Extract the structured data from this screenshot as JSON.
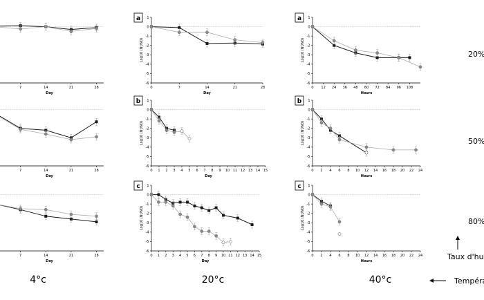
{
  "legend_labels": {
    "temperatures": [
      "4°c",
      "20°c",
      "40°c"
    ],
    "humidity": [
      "20%",
      "50%",
      "80%"
    ],
    "humidity_axis": "Taux d'hum",
    "temperature_axis": "Tempéra"
  },
  "chart_data": [
    {
      "id": "p4_20",
      "type": "line",
      "panel_label": "",
      "xlabel": "Day",
      "ylabel": "",
      "xlim": [
        0,
        30
      ],
      "ylim": [
        -6,
        1
      ],
      "xticks": [
        7,
        14,
        21,
        28
      ],
      "yticks": [],
      "series": [
        {
          "marker": "filled",
          "x": [
            0,
            7,
            14,
            21,
            28
          ],
          "y": [
            0.05,
            0.1,
            0.0,
            -0.3,
            -0.1
          ]
        },
        {
          "marker": "grey",
          "x": [
            0,
            7,
            14,
            21,
            28
          ],
          "y": [
            0.0,
            -0.25,
            0.0,
            -0.5,
            -0.2
          ]
        }
      ]
    },
    {
      "id": "p4_50",
      "type": "line",
      "panel_label": "",
      "xlabel": "Day",
      "ylabel": "",
      "xlim": [
        0,
        30
      ],
      "ylim": [
        -6,
        1
      ],
      "xticks": [
        7,
        14,
        21,
        28
      ],
      "yticks": [],
      "series": [
        {
          "marker": "filled",
          "x": [
            0,
            7,
            14,
            21,
            28
          ],
          "y": [
            -0.4,
            -2.0,
            -2.2,
            -3.0,
            -1.3
          ]
        },
        {
          "marker": "grey",
          "x": [
            0,
            7,
            14,
            21,
            28
          ],
          "y": [
            -0.5,
            -2.1,
            -2.6,
            -3.2,
            -2.9
          ]
        }
      ]
    },
    {
      "id": "p4_80",
      "type": "line",
      "panel_label": "",
      "xlabel": "Day",
      "ylabel": "",
      "xlim": [
        0,
        30
      ],
      "ylim": [
        -6,
        1
      ],
      "xticks": [
        7,
        14,
        21,
        28
      ],
      "yticks": [],
      "series": [
        {
          "marker": "filled",
          "x": [
            0,
            7,
            14,
            21,
            28
          ],
          "y": [
            -1.0,
            -1.6,
            -2.3,
            -2.6,
            -2.9
          ]
        },
        {
          "marker": "grey",
          "x": [
            0,
            7,
            14,
            21,
            28
          ],
          "y": [
            -1.0,
            -1.5,
            -1.6,
            -2.1,
            -2.3
          ]
        }
      ]
    },
    {
      "id": "p20_20",
      "type": "line",
      "panel_label": "a",
      "xlabel": "Day",
      "ylabel": "Log10 (Nt/N0)",
      "xlim": [
        0,
        28
      ],
      "ylim": [
        -6,
        1
      ],
      "xticks": [
        0,
        7,
        14,
        21,
        28
      ],
      "yticks": [
        1,
        0,
        -1,
        -2,
        -3,
        -4,
        -5,
        -6
      ],
      "series": [
        {
          "marker": "filled",
          "x": [
            0,
            7,
            14,
            21,
            28
          ],
          "y": [
            0.0,
            -0.1,
            -1.8,
            -1.75,
            -1.85
          ]
        },
        {
          "marker": "grey",
          "x": [
            0,
            7,
            14,
            21,
            28
          ],
          "y": [
            0.0,
            -0.6,
            -0.6,
            -1.4,
            -1.7
          ]
        }
      ]
    },
    {
      "id": "p20_50",
      "type": "line",
      "panel_label": "b",
      "xlabel": "Day",
      "ylabel": "Log10 (Nt/N0)",
      "xlim": [
        0,
        15
      ],
      "ylim": [
        -6,
        1
      ],
      "xticks": [
        0,
        1,
        2,
        3,
        4,
        5,
        6,
        7,
        8,
        9,
        10,
        11,
        12,
        13,
        14,
        15
      ],
      "yticks": [
        1,
        0,
        -1,
        -2,
        -3,
        -4,
        -5,
        -6
      ],
      "series": [
        {
          "marker": "filled",
          "x": [
            0,
            1,
            2,
            3
          ],
          "y": [
            0.0,
            -0.8,
            -2.0,
            -2.2
          ]
        },
        {
          "marker": "grey",
          "x": [
            0,
            1,
            2,
            3,
            4
          ],
          "y": [
            0.0,
            -1.2,
            -2.2,
            -2.4,
            -2.3
          ]
        },
        {
          "marker": "open",
          "x": [
            4,
            5
          ],
          "y": [
            -2.3,
            -3.1
          ]
        }
      ]
    },
    {
      "id": "p20_80",
      "type": "line",
      "panel_label": "c",
      "xlabel": "Day",
      "ylabel": "Log10 (Nt/N0)",
      "xlim": [
        0,
        15
      ],
      "ylim": [
        -6,
        1
      ],
      "xticks": [
        0,
        1,
        2,
        3,
        4,
        5,
        6,
        7,
        8,
        9,
        10,
        11,
        12,
        13,
        14,
        15
      ],
      "yticks": [
        1,
        0,
        -1,
        -2,
        -3,
        -4,
        -5,
        -6
      ],
      "series": [
        {
          "marker": "filled",
          "x": [
            0,
            1,
            2,
            3,
            4,
            5,
            6,
            7,
            8,
            9,
            10,
            12,
            14
          ],
          "y": [
            0.0,
            0.0,
            -0.5,
            -0.9,
            -0.8,
            -0.8,
            -1.2,
            -1.4,
            -1.7,
            -1.4,
            -2.2,
            -2.5,
            -3.2
          ]
        },
        {
          "marker": "grey",
          "x": [
            0,
            1,
            2,
            3,
            4,
            5,
            6,
            7,
            8,
            9,
            10
          ],
          "y": [
            0.0,
            -0.8,
            -0.8,
            -1.2,
            -2.1,
            -2.4,
            -3.4,
            -3.9,
            -3.9,
            -4.4,
            -5.1
          ]
        },
        {
          "marker": "open",
          "x": [
            10,
            11
          ],
          "y": [
            -5.1,
            -5.0
          ]
        }
      ]
    },
    {
      "id": "p40_20",
      "type": "line",
      "panel_label": "a",
      "xlabel": "Hours",
      "ylabel": "Log10 (Nt/N0)",
      "xlim": [
        0,
        120
      ],
      "ylim": [
        -6,
        1
      ],
      "xticks": [
        0,
        12,
        24,
        36,
        48,
        60,
        72,
        84,
        96,
        108
      ],
      "yticks": [
        1,
        0,
        -1,
        -2,
        -3,
        -4,
        -5,
        -6
      ],
      "series": [
        {
          "marker": "filled",
          "x": [
            0,
            24,
            48,
            72,
            96,
            108
          ],
          "y": [
            0.0,
            -2.0,
            -2.8,
            -3.3,
            -3.3,
            -3.3
          ]
        },
        {
          "marker": "grey",
          "x": [
            0,
            24,
            48,
            72,
            96,
            120
          ],
          "y": [
            0.0,
            -1.5,
            -2.5,
            -2.8,
            -3.3,
            -4.3
          ]
        }
      ]
    },
    {
      "id": "p40_50",
      "type": "line",
      "panel_label": "b",
      "xlabel": "Hours",
      "ylabel": "Log10 (Nt/N0)",
      "xlim": [
        0,
        24
      ],
      "ylim": [
        -6,
        1
      ],
      "xticks": [
        0,
        2,
        4,
        6,
        8,
        10,
        12,
        14,
        16,
        18,
        20,
        22,
        24
      ],
      "yticks": [
        1,
        0,
        -1,
        -2,
        -3,
        -4,
        -5,
        -6
      ],
      "series": [
        {
          "marker": "filled",
          "x": [
            0,
            2,
            4,
            6,
            12
          ],
          "y": [
            0.0,
            -1.0,
            -2.2,
            -2.8,
            -4.6
          ]
        },
        {
          "marker": "grey",
          "x": [
            0,
            2,
            4,
            6,
            12,
            18,
            23
          ],
          "y": [
            0.0,
            -1.4,
            -2.0,
            -3.2,
            -4.0,
            -4.3,
            -4.3
          ]
        },
        {
          "marker": "open",
          "x": [
            12
          ],
          "y": [
            -4.6
          ]
        }
      ]
    },
    {
      "id": "p40_80",
      "type": "line",
      "panel_label": "c",
      "xlabel": "Hours",
      "ylabel": "Log10 (Nt/N0)",
      "xlim": [
        0,
        24
      ],
      "ylim": [
        -6,
        1
      ],
      "xticks": [
        0,
        2,
        4,
        6,
        8,
        10,
        12,
        14,
        16,
        18,
        20,
        22,
        24
      ],
      "yticks": [
        1,
        0,
        -1,
        -2,
        -3,
        -4,
        -5,
        -6
      ],
      "series": [
        {
          "marker": "filled",
          "x": [
            0,
            2,
            4
          ],
          "y": [
            0.0,
            -0.7,
            -1.2
          ]
        },
        {
          "marker": "grey",
          "x": [
            0,
            2,
            4,
            6
          ],
          "y": [
            0.0,
            -1.0,
            -1.3,
            -2.9
          ]
        },
        {
          "marker": "open",
          "x": [
            6
          ],
          "y": [
            -4.2
          ]
        }
      ]
    }
  ]
}
